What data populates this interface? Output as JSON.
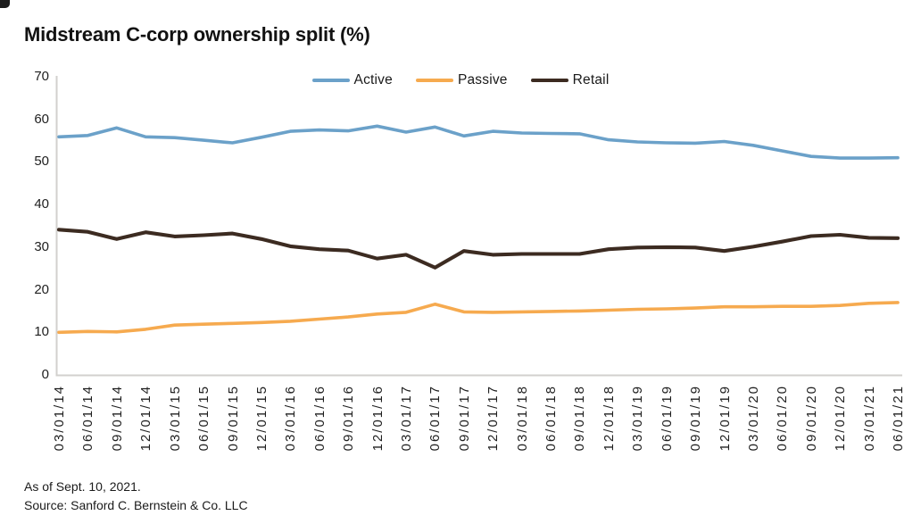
{
  "title": "Midstream C-corp ownership split (%)",
  "footnotes": {
    "line1": "As of Sept. 10, 2021.",
    "line2": "Source: Sanford C. Bernstein & Co. LLC"
  },
  "chart_data": {
    "type": "line",
    "title": "Midstream C-corp ownership split (%)",
    "xlabel": "",
    "ylabel": "",
    "ylim": [
      0,
      70
    ],
    "yticks": [
      0,
      10,
      20,
      30,
      40,
      50,
      60,
      70
    ],
    "grid": false,
    "legend_position": "top-center",
    "axis_color": "#d2d0ce",
    "tick_label_color": "#1f1f1f",
    "categories": [
      "03/01/14",
      "06/01/14",
      "09/01/14",
      "12/01/14",
      "03/01/15",
      "06/01/15",
      "09/01/15",
      "12/01/15",
      "03/01/16",
      "06/01/16",
      "09/01/16",
      "12/01/16",
      "03/01/17",
      "06/01/17",
      "09/01/17",
      "12/01/17",
      "03/01/18",
      "06/01/18",
      "09/01/18",
      "12/01/18",
      "03/01/19",
      "06/01/19",
      "09/01/19",
      "12/01/19",
      "03/01/20",
      "06/01/20",
      "09/01/20",
      "12/01/20",
      "03/01/21",
      "06/01/21"
    ],
    "series": [
      {
        "name": "Active",
        "color": "#6ba1c9",
        "values": [
          55.9,
          56.2,
          58.0,
          55.9,
          55.7,
          55.1,
          54.5,
          55.8,
          57.2,
          57.5,
          57.3,
          58.4,
          57.0,
          58.2,
          56.1,
          57.2,
          56.8,
          56.7,
          56.6,
          55.2,
          54.7,
          54.5,
          54.4,
          54.8,
          53.9,
          52.6,
          51.3,
          50.9,
          50.9,
          51.0
        ]
      },
      {
        "name": "Passive",
        "color": "#f6aa4f",
        "values": [
          10.0,
          10.2,
          10.1,
          10.7,
          11.7,
          11.9,
          12.1,
          12.3,
          12.6,
          13.1,
          13.6,
          14.3,
          14.7,
          16.6,
          14.8,
          14.7,
          14.8,
          14.9,
          15.0,
          15.2,
          15.4,
          15.5,
          15.7,
          16.0,
          16.0,
          16.1,
          16.1,
          16.3,
          16.8,
          17.0
        ]
      },
      {
        "name": "Retail",
        "color": "#3c2b21",
        "values": [
          34.1,
          33.6,
          31.9,
          33.5,
          32.5,
          32.8,
          33.2,
          31.9,
          30.2,
          29.5,
          29.2,
          27.3,
          28.2,
          25.2,
          29.1,
          28.2,
          28.4,
          28.4,
          28.4,
          29.5,
          29.9,
          30.0,
          29.9,
          29.1,
          30.1,
          31.3,
          32.6,
          32.9,
          32.2,
          32.1
        ]
      }
    ]
  }
}
